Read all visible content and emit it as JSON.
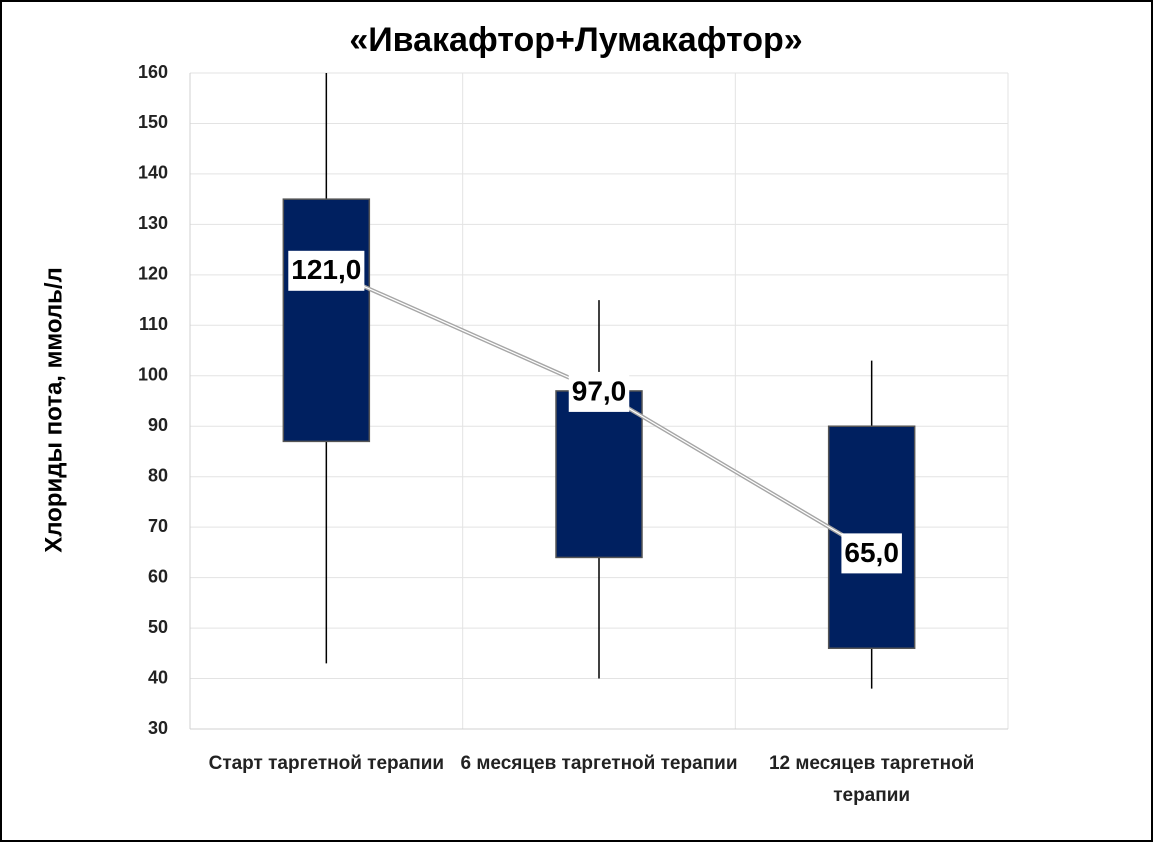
{
  "chart_data": {
    "type": "box",
    "title": "«Ивакафтор+Лумакафтор»",
    "y_label": "Хлориды пота, ммоль/л",
    "categories": [
      "Старт таргетной терапии",
      "6 месяцев таргетной терапии",
      "12 месяцев таргетной терапии"
    ],
    "whisker_low": [
      43,
      40,
      38
    ],
    "q1": [
      87,
      64,
      46
    ],
    "median": [
      121,
      97,
      65
    ],
    "median_labels": [
      "121,0",
      "97,0",
      "65,0"
    ],
    "q3": [
      135,
      97,
      90
    ],
    "whisker_high": [
      160,
      115,
      103
    ],
    "color": "#002060",
    "line_color": "#a6a6a6",
    "ylim": [
      30,
      160
    ],
    "yticks": [
      30,
      40,
      50,
      60,
      70,
      80,
      90,
      100,
      110,
      120,
      130,
      140,
      150,
      160
    ],
    "grid": true
  }
}
